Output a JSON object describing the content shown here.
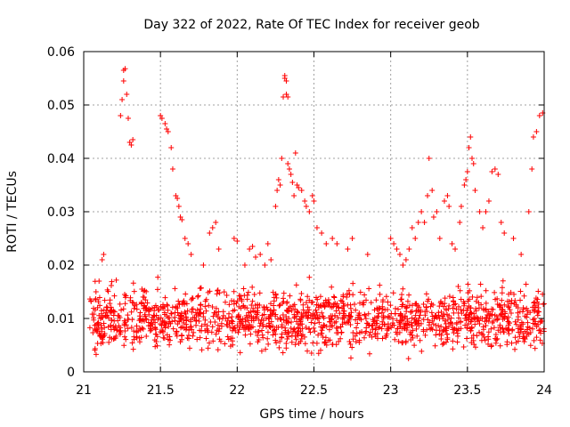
{
  "chart_data": {
    "type": "scatter",
    "title": "Day 322 of 2022, Rate Of TEC Index for receiver geob",
    "xlabel": "GPS time / hours",
    "ylabel": "ROTI / TECUs",
    "xlim": [
      21,
      24
    ],
    "ylim": [
      0,
      0.06
    ],
    "x_ticks": [
      21,
      21.5,
      22,
      22.5,
      23,
      23.5,
      24
    ],
    "x_tick_labels": [
      "21",
      "21.5",
      "22",
      "22.5",
      "23",
      "23.5",
      "24"
    ],
    "y_ticks": [
      0,
      0.01,
      0.02,
      0.03,
      0.04,
      0.05,
      0.06
    ],
    "y_tick_labels": [
      "0",
      "0.01",
      "0.02",
      "0.03",
      "0.04",
      "0.05",
      "0.06"
    ],
    "grid": true,
    "marker": "+",
    "color": "#ff0000",
    "series": [
      {
        "name": "ROTI",
        "points": [
          [
            21.08,
            0.015
          ],
          [
            21.1,
            0.017
          ],
          [
            21.12,
            0.021
          ],
          [
            21.13,
            0.022
          ],
          [
            21.24,
            0.048
          ],
          [
            21.25,
            0.051
          ],
          [
            21.26,
            0.0545
          ],
          [
            21.26,
            0.0565
          ],
          [
            21.27,
            0.0568
          ],
          [
            21.28,
            0.052
          ],
          [
            21.29,
            0.0475
          ],
          [
            21.3,
            0.043
          ],
          [
            21.31,
            0.0425
          ],
          [
            21.32,
            0.0435
          ],
          [
            21.5,
            0.048
          ],
          [
            21.51,
            0.0475
          ],
          [
            21.53,
            0.0465
          ],
          [
            21.54,
            0.0455
          ],
          [
            21.55,
            0.045
          ],
          [
            21.57,
            0.042
          ],
          [
            21.58,
            0.038
          ],
          [
            21.6,
            0.033
          ],
          [
            21.61,
            0.0325
          ],
          [
            21.62,
            0.031
          ],
          [
            21.63,
            0.029
          ],
          [
            21.64,
            0.0285
          ],
          [
            21.66,
            0.025
          ],
          [
            21.68,
            0.024
          ],
          [
            21.7,
            0.022
          ],
          [
            21.78,
            0.02
          ],
          [
            21.82,
            0.026
          ],
          [
            21.84,
            0.027
          ],
          [
            21.86,
            0.028
          ],
          [
            21.88,
            0.023
          ],
          [
            21.98,
            0.025
          ],
          [
            22.0,
            0.0245
          ],
          [
            22.05,
            0.02
          ],
          [
            22.08,
            0.023
          ],
          [
            22.1,
            0.0235
          ],
          [
            22.12,
            0.0215
          ],
          [
            22.15,
            0.022
          ],
          [
            22.18,
            0.02
          ],
          [
            22.2,
            0.024
          ],
          [
            22.22,
            0.021
          ],
          [
            22.25,
            0.031
          ],
          [
            22.26,
            0.034
          ],
          [
            22.27,
            0.036
          ],
          [
            22.28,
            0.035
          ],
          [
            22.29,
            0.04
          ],
          [
            22.3,
            0.0515
          ],
          [
            22.31,
            0.0555
          ],
          [
            22.31,
            0.055
          ],
          [
            22.32,
            0.0545
          ],
          [
            22.32,
            0.052
          ],
          [
            22.33,
            0.0515
          ],
          [
            22.33,
            0.039
          ],
          [
            22.34,
            0.038
          ],
          [
            22.35,
            0.037
          ],
          [
            22.36,
            0.0355
          ],
          [
            22.37,
            0.033
          ],
          [
            22.38,
            0.041
          ],
          [
            22.39,
            0.035
          ],
          [
            22.4,
            0.0345
          ],
          [
            22.42,
            0.034
          ],
          [
            22.44,
            0.032
          ],
          [
            22.45,
            0.031
          ],
          [
            22.47,
            0.03
          ],
          [
            22.49,
            0.033
          ],
          [
            22.5,
            0.032
          ],
          [
            22.52,
            0.027
          ],
          [
            22.55,
            0.026
          ],
          [
            22.58,
            0.024
          ],
          [
            22.62,
            0.025
          ],
          [
            22.65,
            0.024
          ],
          [
            22.72,
            0.023
          ],
          [
            22.75,
            0.025
          ],
          [
            22.85,
            0.022
          ],
          [
            23.0,
            0.025
          ],
          [
            23.02,
            0.024
          ],
          [
            23.04,
            0.023
          ],
          [
            23.06,
            0.022
          ],
          [
            23.08,
            0.02
          ],
          [
            23.1,
            0.021
          ],
          [
            23.12,
            0.023
          ],
          [
            23.14,
            0.027
          ],
          [
            23.16,
            0.025
          ],
          [
            23.18,
            0.028
          ],
          [
            23.2,
            0.03
          ],
          [
            23.22,
            0.028
          ],
          [
            23.24,
            0.033
          ],
          [
            23.25,
            0.04
          ],
          [
            23.27,
            0.034
          ],
          [
            23.28,
            0.029
          ],
          [
            23.3,
            0.03
          ],
          [
            23.32,
            0.025
          ],
          [
            23.35,
            0.032
          ],
          [
            23.37,
            0.033
          ],
          [
            23.38,
            0.031
          ],
          [
            23.4,
            0.024
          ],
          [
            23.42,
            0.023
          ],
          [
            23.45,
            0.028
          ],
          [
            23.46,
            0.031
          ],
          [
            23.48,
            0.035
          ],
          [
            23.49,
            0.036
          ],
          [
            23.5,
            0.0375
          ],
          [
            23.51,
            0.042
          ],
          [
            23.52,
            0.044
          ],
          [
            23.53,
            0.04
          ],
          [
            23.54,
            0.039
          ],
          [
            23.55,
            0.034
          ],
          [
            23.58,
            0.03
          ],
          [
            23.6,
            0.027
          ],
          [
            23.62,
            0.03
          ],
          [
            23.64,
            0.032
          ],
          [
            23.66,
            0.0375
          ],
          [
            23.68,
            0.038
          ],
          [
            23.7,
            0.037
          ],
          [
            23.72,
            0.028
          ],
          [
            23.74,
            0.026
          ],
          [
            23.8,
            0.025
          ],
          [
            23.85,
            0.022
          ],
          [
            23.9,
            0.03
          ],
          [
            23.92,
            0.038
          ],
          [
            23.93,
            0.044
          ],
          [
            23.95,
            0.045
          ],
          [
            23.97,
            0.048
          ],
          [
            23.99,
            0.0485
          ]
        ]
      }
    ],
    "band": {
      "description": "dense background cluster of ROTI samples",
      "y_range": [
        0.002,
        0.018
      ],
      "y_center": 0.009
    }
  }
}
